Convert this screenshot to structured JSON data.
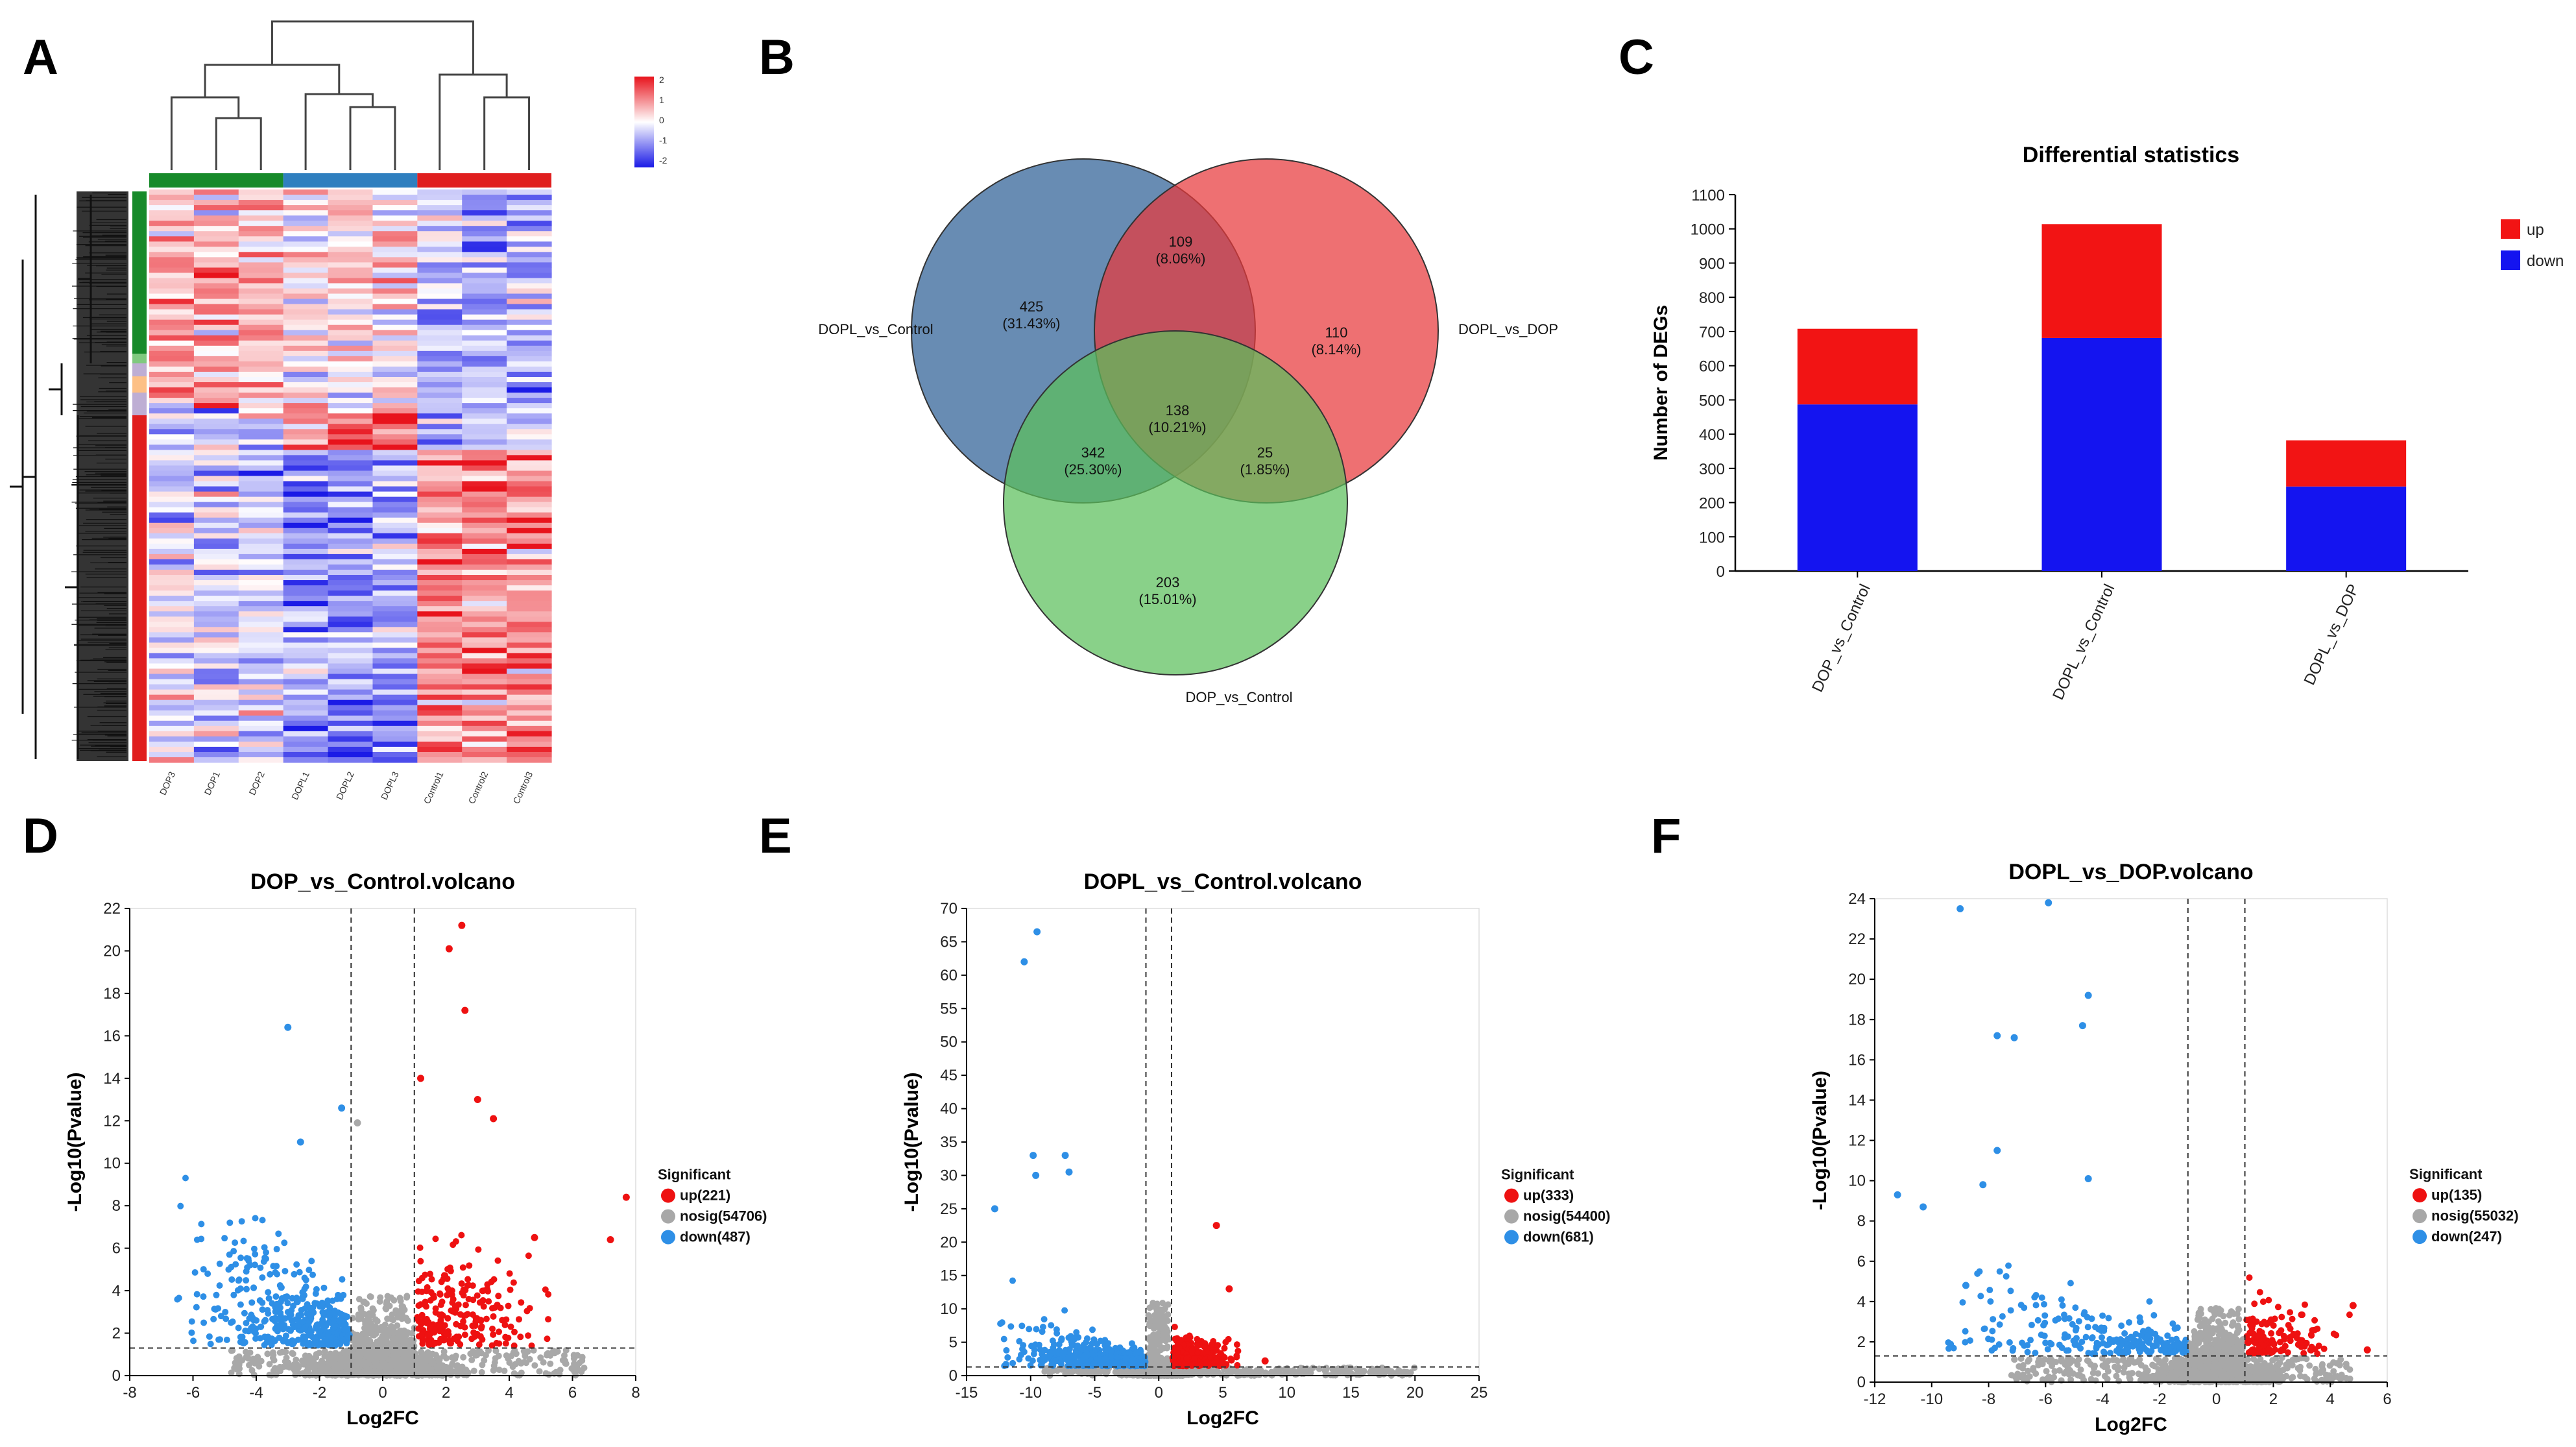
{
  "panel_labels": [
    "A",
    "B",
    "C",
    "D",
    "E",
    "F"
  ],
  "heatmap": {
    "samples": [
      "DOP3",
      "DOP1",
      "DOP2",
      "DOPL1",
      "DOPL2",
      "DOPL3",
      "Control1",
      "Control2",
      "Control3"
    ],
    "groups": [
      {
        "name": "DOP",
        "color": "#178a2a"
      },
      {
        "name": "DOPL",
        "color": "#2f7fbf"
      },
      {
        "name": "Control",
        "color": "#e01e1e"
      }
    ],
    "colorbar_ticks": [
      "2",
      "1",
      "0",
      "-1",
      "-2"
    ],
    "colorbar_colors": {
      "high": "#e8131c",
      "mid": "#ffffff",
      "low": "#1a1ae6"
    },
    "cluster_colors": [
      "#178a2a",
      "#7fc97f",
      "#beaed4",
      "#fdc086",
      "#e01e1e"
    ]
  },
  "chart_data": [
    {
      "type": "venn",
      "sets": [
        {
          "name": "DOPL_vs_Control",
          "color": "#2e5f96"
        },
        {
          "name": "DOPL_vs_DOP",
          "color": "#e8393b"
        },
        {
          "name": "DOP_vs_Control",
          "color": "#5cbf5c"
        }
      ],
      "regions": [
        {
          "sets": [
            "DOPL_vs_Control"
          ],
          "count": "425",
          "pct": "(31.43%)"
        },
        {
          "sets": [
            "DOPL_vs_DOP"
          ],
          "count": "110",
          "pct": "(8.14%)"
        },
        {
          "sets": [
            "DOP_vs_Control"
          ],
          "count": "203",
          "pct": "(15.01%)"
        },
        {
          "sets": [
            "DOPL_vs_Control",
            "DOPL_vs_DOP"
          ],
          "count": "109",
          "pct": "(8.06%)"
        },
        {
          "sets": [
            "DOPL_vs_Control",
            "DOP_vs_Control"
          ],
          "count": "342",
          "pct": "(25.30%)"
        },
        {
          "sets": [
            "DOPL_vs_DOP",
            "DOP_vs_Control"
          ],
          "count": "25",
          "pct": "(1.85%)"
        },
        {
          "sets": [
            "DOPL_vs_Control",
            "DOPL_vs_DOP",
            "DOP_vs_Control"
          ],
          "count": "138",
          "pct": "(10.21%)"
        }
      ]
    },
    {
      "type": "bar",
      "stacked": true,
      "title": "Differential statistics",
      "ylabel": "Number of DEGs",
      "xlabel": "",
      "categories": [
        "DOP_vs_Control",
        "DOPL_vs_Control",
        "DOPL_vs_DOP"
      ],
      "series": [
        {
          "name": "down",
          "color": "#1414f0",
          "values": [
            487,
            681,
            247
          ]
        },
        {
          "name": "up",
          "color": "#f21414",
          "values": [
            221,
            333,
            135
          ]
        }
      ],
      "legend_order": [
        "up",
        "down"
      ],
      "ylim": [
        0,
        1100
      ],
      "yticks": [
        0,
        100,
        200,
        300,
        400,
        500,
        600,
        700,
        800,
        900,
        1000,
        1100
      ]
    },
    {
      "type": "scatter",
      "title": "DOP_vs_Control.volcano",
      "xlabel": "Log2FC",
      "ylabel": "-Log10(Pvalue)",
      "xlim": [
        -8,
        8
      ],
      "ylim": [
        0,
        22
      ],
      "xticks": [
        -8,
        -6,
        -4,
        -2,
        0,
        2,
        4,
        6,
        8
      ],
      "yticks": [
        0,
        2,
        4,
        6,
        8,
        10,
        12,
        14,
        16,
        18,
        20,
        22
      ],
      "thresholds": {
        "x": [
          -1,
          1
        ],
        "y": 1.3
      },
      "legend_title": "Significant",
      "legend": [
        {
          "label": "up(221)",
          "color": "#ee1111"
        },
        {
          "label": "nosig(54706)",
          "color": "#a8a8a8"
        },
        {
          "label": "down(487)",
          "color": "#2e8fe6"
        }
      ],
      "counts": {
        "up": 221,
        "nosig": 54706,
        "down": 487
      },
      "outliers": [
        [
          2.5,
          21.2
        ],
        [
          2.1,
          20.1
        ],
        [
          2.6,
          17.2
        ],
        [
          -3.0,
          16.4
        ],
        [
          3.0,
          13.0
        ],
        [
          -2.6,
          11.0
        ],
        [
          3.5,
          12.1
        ],
        [
          7.7,
          8.4
        ],
        [
          7.2,
          6.4
        ],
        [
          4.8,
          6.5
        ],
        [
          -1.3,
          12.6
        ],
        [
          -0.8,
          11.9
        ],
        [
          1.2,
          14.0
        ]
      ],
      "spread": {
        "down_xmin": -6.5,
        "up_xmax": 5.6,
        "tail": 7.5,
        "ymax": 12
      }
    },
    {
      "type": "scatter",
      "title": "DOPL_vs_Control.volcano",
      "xlabel": "Log2FC",
      "ylabel": "-Log10(Pvalue)",
      "xlim": [
        -15,
        25
      ],
      "ylim": [
        0,
        70
      ],
      "xticks": [
        -15,
        -10,
        -5,
        0,
        5,
        10,
        15,
        20,
        25
      ],
      "yticks": [
        0,
        5,
        10,
        15,
        20,
        25,
        30,
        35,
        40,
        45,
        50,
        55,
        60,
        65,
        70
      ],
      "thresholds": {
        "x": [
          -1,
          1
        ],
        "y": 1.3
      },
      "legend_title": "Significant",
      "legend": [
        {
          "label": "up(333)",
          "color": "#ee1111"
        },
        {
          "label": "nosig(54400)",
          "color": "#a8a8a8"
        },
        {
          "label": "down(681)",
          "color": "#2e8fe6"
        }
      ],
      "counts": {
        "up": 333,
        "nosig": 54400,
        "down": 681
      },
      "outliers": [
        [
          -9.5,
          66.5
        ],
        [
          -10.5,
          62.0
        ],
        [
          -9.8,
          33.0
        ],
        [
          -7.3,
          33.0
        ],
        [
          -12.8,
          25.0
        ],
        [
          -9.6,
          30.0
        ],
        [
          -7.0,
          30.5
        ],
        [
          4.5,
          22.5
        ],
        [
          5.5,
          13.0
        ],
        [
          8.3,
          2.2
        ]
      ],
      "spread": {
        "down_xmin": -12.5,
        "up_xmax": 6.5,
        "tail": 22,
        "ymax": 12
      }
    },
    {
      "type": "scatter",
      "title": "DOPL_vs_DOP.volcano",
      "xlabel": "Log2FC",
      "ylabel": "-Log10(Pvalue)",
      "xlim": [
        -12,
        6
      ],
      "ylim": [
        0,
        24
      ],
      "xticks": [
        -12,
        -10,
        -8,
        -6,
        -4,
        -2,
        0,
        2,
        4,
        6
      ],
      "yticks": [
        0,
        2,
        4,
        6,
        8,
        10,
        12,
        14,
        16,
        18,
        20,
        22,
        24
      ],
      "thresholds": {
        "x": [
          -1,
          1
        ],
        "y": 1.3
      },
      "legend_title": "Significant",
      "legend": [
        {
          "label": "up(135)",
          "color": "#ee1111"
        },
        {
          "label": "nosig(55032)",
          "color": "#a8a8a8"
        },
        {
          "label": "down(247)",
          "color": "#2e8fe6"
        }
      ],
      "counts": {
        "up": 135,
        "nosig": 55032,
        "down": 247
      },
      "outliers": [
        [
          -9.0,
          23.5
        ],
        [
          -5.9,
          23.8
        ],
        [
          -4.5,
          19.2
        ],
        [
          -4.7,
          17.7
        ],
        [
          -7.7,
          17.2
        ],
        [
          -7.1,
          17.1
        ],
        [
          -11.2,
          9.3
        ],
        [
          -7.7,
          11.5
        ],
        [
          -4.5,
          10.1
        ],
        [
          -8.2,
          9.8
        ],
        [
          -10.3,
          8.7
        ],
        [
          -8.8,
          4.8
        ],
        [
          4.8,
          3.8
        ],
        [
          5.3,
          1.6
        ]
      ],
      "spread": {
        "down_xmin": -9.5,
        "up_xmax": 4.8,
        "tail": 7.5,
        "ymax": 7
      }
    }
  ]
}
